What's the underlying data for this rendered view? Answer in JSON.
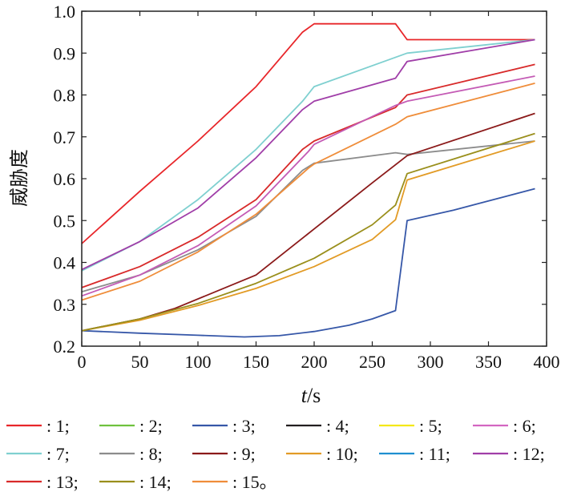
{
  "chart_data": {
    "type": "line",
    "xlabel_var": "t",
    "xlabel_unit": "/s",
    "ylabel": "威胁度",
    "xlim": [
      0,
      400
    ],
    "ylim": [
      0.2,
      1.0
    ],
    "x_ticks": [
      0,
      50,
      100,
      150,
      200,
      250,
      300,
      350,
      400
    ],
    "y_ticks": [
      0.2,
      0.3,
      0.4,
      0.5,
      0.6,
      0.7,
      0.8,
      0.9,
      1.0
    ],
    "y_tick_labels": [
      "0.2",
      "0.3",
      "0.4",
      "0.5",
      "0.6",
      "0.7",
      "0.8",
      "0.9",
      "1.0"
    ],
    "legend_placement": "bottom",
    "series": [
      {
        "name": ": 1;",
        "color": "#e8262a",
        "x": [
          0,
          50,
          100,
          150,
          190,
          200,
          270,
          280,
          390
        ],
        "y": [
          0.445,
          0.57,
          0.69,
          0.82,
          0.95,
          0.97,
          0.97,
          0.932,
          0.932
        ]
      },
      {
        "name": ": 2;",
        "color": "#6fc23e",
        "x": [],
        "y": []
      },
      {
        "name": ": 3;",
        "color": "#3657a8",
        "x": [
          0,
          50,
          100,
          140,
          170,
          200,
          230,
          250,
          270,
          280,
          320,
          390
        ],
        "y": [
          0.237,
          0.231,
          0.226,
          0.222,
          0.225,
          0.235,
          0.25,
          0.265,
          0.285,
          0.5,
          0.525,
          0.576
        ]
      },
      {
        "name": ": 4;",
        "color": "#231f20",
        "x": [],
        "y": []
      },
      {
        "name": ": 5;",
        "color": "#f4e818",
        "x": [],
        "y": []
      },
      {
        "name": ": 6;",
        "color": "#d366c1",
        "x": [],
        "y": []
      },
      {
        "name": ": 7;",
        "color": "#7fd0d0",
        "x": [
          0,
          50,
          100,
          150,
          190,
          200,
          280,
          390
        ],
        "y": [
          0.38,
          0.45,
          0.55,
          0.67,
          0.785,
          0.82,
          0.9,
          0.932
        ]
      },
      {
        "name": ": 8;",
        "color": "#8c8c8c",
        "x": [
          0,
          50,
          100,
          150,
          190,
          200,
          270,
          280,
          390
        ],
        "y": [
          0.33,
          0.37,
          0.43,
          0.51,
          0.62,
          0.637,
          0.662,
          0.658,
          0.69
        ]
      },
      {
        "name": ": 9;",
        "color": "#8b1a1a",
        "x": [
          0,
          50,
          80,
          150,
          200,
          250,
          280,
          390
        ],
        "y": [
          0.237,
          0.265,
          0.29,
          0.37,
          0.48,
          0.59,
          0.655,
          0.756
        ]
      },
      {
        "name": ": 10;",
        "color": "#e29b26",
        "x": [
          0,
          50,
          100,
          150,
          200,
          250,
          270,
          280,
          390
        ],
        "y": [
          0.237,
          0.262,
          0.297,
          0.338,
          0.39,
          0.455,
          0.502,
          0.597,
          0.69
        ]
      },
      {
        "name": ": 11;",
        "color": "#1f8fd0",
        "x": [],
        "y": []
      },
      {
        "name": ": 12;",
        "color": "#a03ea8",
        "x": [
          0,
          50,
          100,
          150,
          190,
          200,
          270,
          280,
          390
        ],
        "y": [
          0.383,
          0.45,
          0.53,
          0.65,
          0.765,
          0.785,
          0.84,
          0.88,
          0.932
        ]
      },
      {
        "name": ": 13;",
        "color": "#d82a2a",
        "x": [
          0,
          50,
          100,
          150,
          190,
          200,
          270,
          280,
          390
        ],
        "y": [
          0.34,
          0.39,
          0.46,
          0.55,
          0.67,
          0.69,
          0.77,
          0.8,
          0.873
        ]
      },
      {
        "name": ": 14;",
        "color": "#9a8f1c",
        "x": [
          0,
          50,
          100,
          150,
          200,
          250,
          270,
          280,
          390
        ],
        "y": [
          0.237,
          0.265,
          0.302,
          0.35,
          0.41,
          0.49,
          0.537,
          0.612,
          0.708
        ]
      },
      {
        "name": ": 15。",
        "color": "#ef8d3a",
        "x": [
          0,
          50,
          100,
          150,
          195,
          200,
          270,
          280,
          390
        ],
        "y": [
          0.31,
          0.355,
          0.425,
          0.515,
          0.625,
          0.635,
          0.73,
          0.748,
          0.828
        ]
      },
      {
        "name": "",
        "color": "#c45bb5",
        "x": [
          0,
          50,
          100,
          150,
          195,
          200,
          270,
          280,
          390
        ],
        "y": [
          0.32,
          0.37,
          0.44,
          0.535,
          0.665,
          0.682,
          0.775,
          0.785,
          0.845
        ]
      }
    ]
  }
}
